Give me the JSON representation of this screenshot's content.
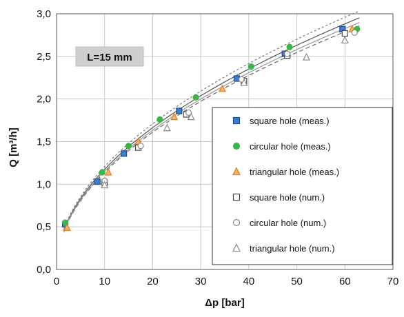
{
  "chart_data": {
    "type": "scatter",
    "xlabel": "Δp [bar]",
    "ylabel": "Q [m³/h]",
    "xlim": [
      0,
      70
    ],
    "ylim": [
      0,
      3
    ],
    "x_ticks": [
      "0",
      "10",
      "20",
      "30",
      "40",
      "50",
      "60",
      "70"
    ],
    "y_ticks": [
      "0,0",
      "0,5",
      "1,0",
      "1,5",
      "2,0",
      "2,5",
      "3,0"
    ],
    "grid": true,
    "legend_position": "right",
    "annotation": "L=15 mm",
    "series": [
      {
        "name": "square hole (meas.)",
        "marker": "square",
        "filled": true,
        "color": "#3a7fd0",
        "points": [
          [
            1.8,
            0.53
          ],
          [
            8.5,
            1.03
          ],
          [
            14,
            1.36
          ],
          [
            25.5,
            1.86
          ],
          [
            37.5,
            2.24
          ],
          [
            47.5,
            2.53
          ],
          [
            59.5,
            2.82
          ]
        ]
      },
      {
        "name": "circular hole (meas.)",
        "marker": "circle",
        "filled": true,
        "color": "#3bb54a",
        "points": [
          [
            1.8,
            0.55
          ],
          [
            9.5,
            1.14
          ],
          [
            15,
            1.45
          ],
          [
            21.5,
            1.76
          ],
          [
            29,
            2.02
          ],
          [
            40.5,
            2.38
          ],
          [
            48.5,
            2.61
          ],
          [
            62.5,
            2.82
          ]
        ]
      },
      {
        "name": "triangular hole (meas.)",
        "marker": "triangle",
        "filled": true,
        "color": "#f39c3b",
        "points": [
          [
            2.2,
            0.49
          ],
          [
            10.8,
            1.14
          ],
          [
            17,
            1.5
          ],
          [
            24.5,
            1.79
          ],
          [
            34.5,
            2.12
          ],
          [
            48,
            2.53
          ],
          [
            61.5,
            2.82
          ]
        ]
      },
      {
        "name": "square hole (num.)",
        "marker": "square",
        "filled": false,
        "color": "#444444",
        "points": [
          [
            10,
            1.02
          ],
          [
            17,
            1.43
          ],
          [
            27,
            1.82
          ],
          [
            39,
            2.21
          ],
          [
            48,
            2.51
          ],
          [
            60,
            2.77
          ]
        ]
      },
      {
        "name": "circular hole (num.)",
        "marker": "circle",
        "filled": false,
        "color": "#888888",
        "points": [
          [
            10,
            1.04
          ],
          [
            17.5,
            1.45
          ],
          [
            27.5,
            1.84
          ],
          [
            38.5,
            2.23
          ],
          [
            48,
            2.53
          ],
          [
            62,
            2.78
          ]
        ]
      },
      {
        "name": "triangular hole (num.)",
        "marker": "triangle",
        "filled": false,
        "color": "#888888",
        "points": [
          [
            10,
            0.99
          ],
          [
            23,
            1.66
          ],
          [
            28,
            1.79
          ],
          [
            39,
            2.19
          ],
          [
            52,
            2.49
          ],
          [
            60,
            2.69
          ]
        ]
      }
    ],
    "fit_curves": [
      {
        "dash": "none",
        "color": "#555555",
        "k": 0.372
      },
      {
        "dash": "3,3",
        "color": "#777777",
        "k": 0.382
      },
      {
        "dash": "6,4",
        "color": "#666666",
        "k": 0.36
      },
      {
        "dash": "none",
        "color": "#999999",
        "k": 0.365
      }
    ]
  }
}
